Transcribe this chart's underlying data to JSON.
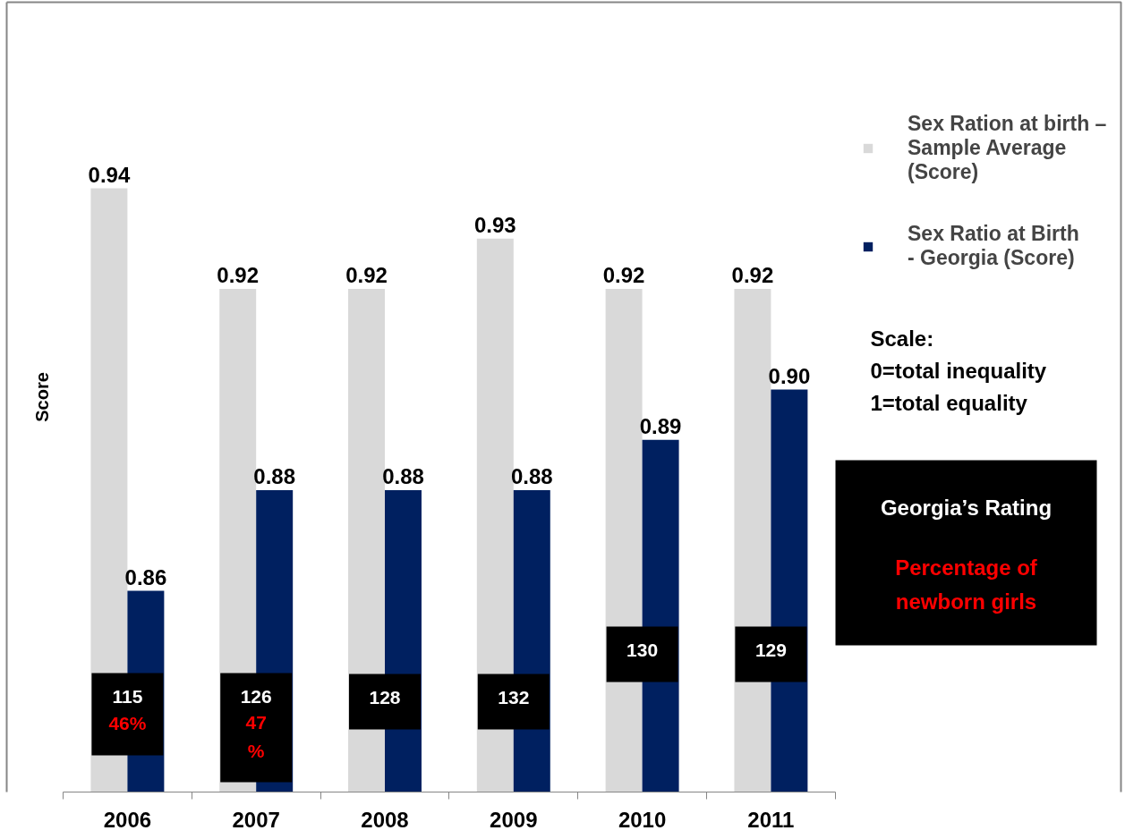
{
  "chart_data": {
    "type": "bar",
    "categories": [
      "2006",
      "2007",
      "2008",
      "2009",
      "2010",
      "2011"
    ],
    "ylabel": "Score",
    "ylim": [
      0.82,
      0.977
    ],
    "series": [
      {
        "name": "Sex Ration at birth –\nSample Average\n(Score)",
        "color": "#d9d9d9",
        "values": [
          0.94,
          0.92,
          0.92,
          0.93,
          0.92,
          0.92
        ],
        "value_labels": [
          "0.94",
          "0.92",
          "0.92",
          "0.93",
          "0.92",
          "0.92"
        ]
      },
      {
        "name": "Sex Ratio at Birth\n- Georgia (Score)",
        "color": "#002060",
        "values": [
          0.86,
          0.88,
          0.88,
          0.88,
          0.89,
          0.9
        ],
        "value_labels": [
          "0.86",
          "0.88",
          "0.88",
          "0.88",
          "0.89",
          "0.90"
        ]
      }
    ],
    "legend": "top right",
    "annotations": [
      "Scale:\n0=total inequality\n1=total equality",
      "Georgia’s Rating\nPercentage of\nnewborn girls",
      "115\n46%",
      "126\n47\n%",
      "128",
      "132",
      "130",
      "129"
    ]
  }
}
